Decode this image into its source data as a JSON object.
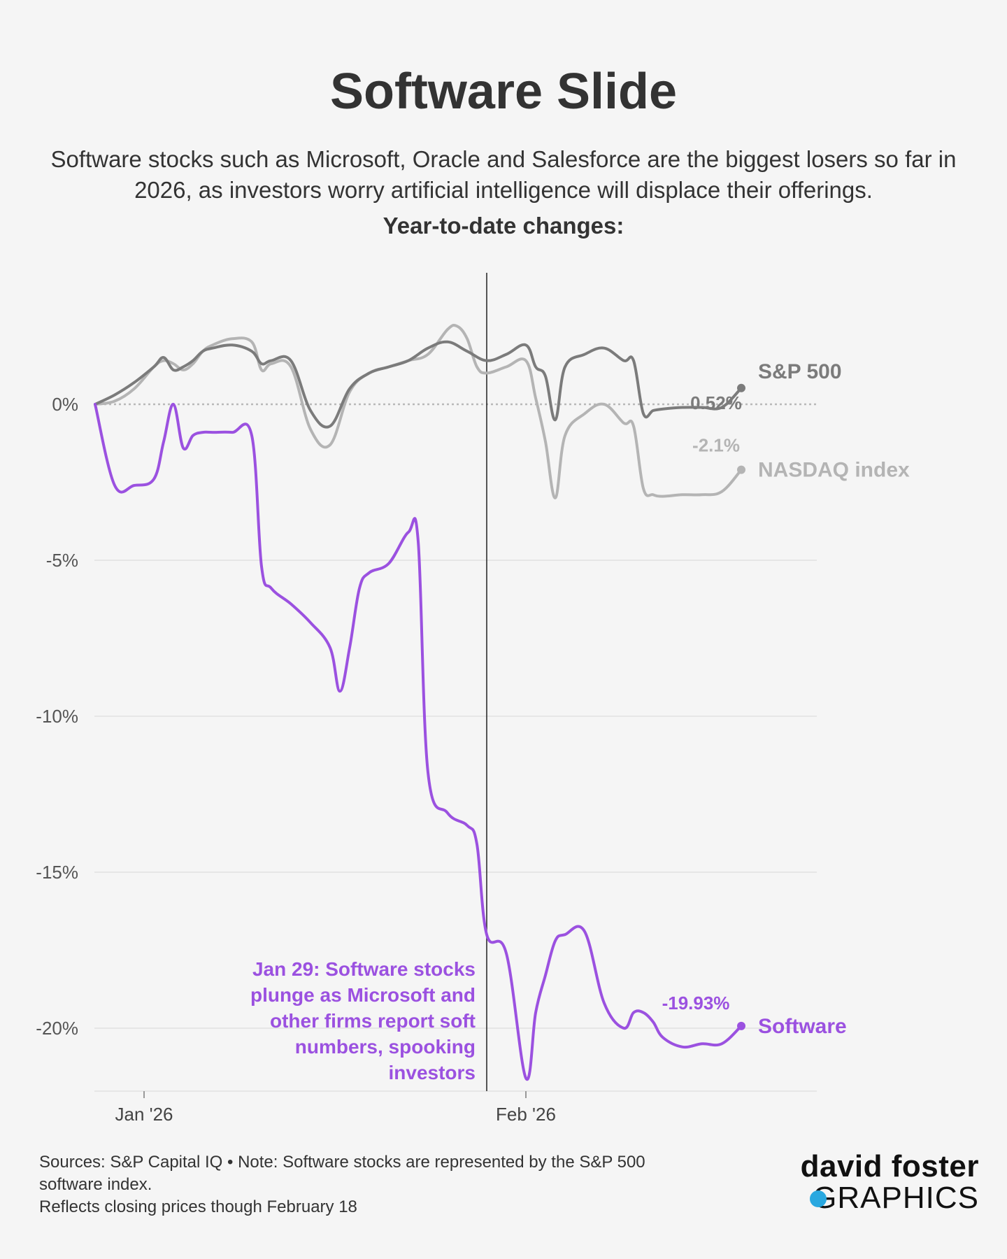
{
  "header": {
    "title": "Software Slide",
    "subtitle": "Software stocks such as Microsoft, Oracle and Salesforce are the biggest losers so far in 2026, as investors worry artificial intelligence will displace their offerings.",
    "ytd_label": "Year-to-date changes:"
  },
  "footer": {
    "line1": "Sources: S&P Capital IQ • Note: Software stocks are represented by the S&P 500 software index.",
    "line2": "Reflects closing prices though February 18"
  },
  "logo": {
    "top": "david foster",
    "bottom": "GRAPHICS"
  },
  "colors": {
    "software": "#9b51e0",
    "sp500": "#7b7b7b",
    "nasdaq": "#b4b4b4",
    "grid": "#e6e6e6",
    "text": "#333333"
  },
  "chart_data": {
    "type": "line",
    "x_unit": "trading day (0 = Dec 31, 2025)",
    "x_range": [
      0,
      34
    ],
    "y_range": [
      -22,
      4
    ],
    "y_ticks": [
      0,
      -5,
      -10,
      -15,
      -20
    ],
    "y_tick_labels": [
      "0%",
      "-5%",
      "-10%",
      "-15%",
      "-20%"
    ],
    "x_ticks": [
      {
        "x": 2.5,
        "label": "Jan '26"
      },
      {
        "x": 22,
        "label": "Feb '26"
      }
    ],
    "event_line_x": 20,
    "series": [
      {
        "name": "S&P 500",
        "key": "sp500",
        "end_label": "0.52%",
        "x": [
          0,
          1,
          2,
          3,
          3.5,
          4,
          4.5,
          5,
          5.5,
          6,
          7,
          8,
          8.5,
          9,
          10,
          11,
          12,
          13,
          14,
          15,
          16,
          17,
          18,
          19,
          20,
          21,
          22,
          22.5,
          23,
          23.5,
          24,
          25,
          26,
          27,
          27.5,
          28,
          28.5,
          29,
          30,
          31,
          32,
          33
        ],
        "y": [
          0,
          0.3,
          0.7,
          1.2,
          1.5,
          1.1,
          1.2,
          1.4,
          1.7,
          1.8,
          1.9,
          1.7,
          1.3,
          1.4,
          1.4,
          -0.2,
          -0.7,
          0.5,
          1.0,
          1.2,
          1.4,
          1.8,
          2.0,
          1.7,
          1.4,
          1.6,
          1.9,
          1.2,
          0.9,
          -0.5,
          1.2,
          1.6,
          1.8,
          1.4,
          1.4,
          -0.3,
          -0.2,
          -0.15,
          -0.1,
          -0.1,
          -0.1,
          0.52
        ]
      },
      {
        "name": "NASDAQ index",
        "key": "nasdaq",
        "end_label": "-2.1%",
        "x": [
          0,
          1,
          2,
          3,
          3.5,
          4,
          4.5,
          5,
          5.5,
          6,
          7,
          8,
          8.5,
          9,
          10,
          11,
          12,
          13,
          14,
          15,
          16,
          17,
          18,
          18.5,
          19,
          19.5,
          20,
          21,
          22,
          22.5,
          23,
          23.5,
          24,
          25,
          26,
          27,
          27.5,
          28,
          28.5,
          29,
          30,
          31,
          32,
          33
        ],
        "y": [
          0,
          0.1,
          0.5,
          1.2,
          1.4,
          1.3,
          1.1,
          1.3,
          1.7,
          1.9,
          2.1,
          2.0,
          1.1,
          1.3,
          1.2,
          -0.8,
          -1.3,
          0.4,
          1.0,
          1.2,
          1.4,
          1.6,
          2.4,
          2.5,
          2.1,
          1.2,
          1.0,
          1.2,
          1.4,
          0.2,
          -1.2,
          -3.0,
          -1.0,
          -0.3,
          0.0,
          -0.6,
          -0.7,
          -2.7,
          -2.9,
          -2.95,
          -2.9,
          -2.9,
          -2.8,
          -2.1
        ]
      },
      {
        "name": "Software",
        "key": "software",
        "end_label": "-19.93%",
        "x": [
          0,
          1,
          2,
          3,
          3.5,
          4,
          4.5,
          5,
          5.5,
          6,
          7,
          8,
          8.5,
          9,
          10,
          11,
          12,
          12.5,
          13,
          13.5,
          14,
          15,
          16,
          16.5,
          17,
          18,
          19,
          19.5,
          20,
          21,
          22,
          22.5,
          23,
          23.5,
          24,
          25,
          26,
          27,
          27.5,
          28,
          28.5,
          29,
          30,
          31,
          32,
          33
        ],
        "y": [
          0,
          -2.6,
          -2.6,
          -2.4,
          -1.2,
          0.0,
          -1.4,
          -1.0,
          -0.9,
          -0.9,
          -0.9,
          -1.0,
          -5.2,
          -5.9,
          -6.4,
          -7.0,
          -7.8,
          -9.2,
          -7.8,
          -5.9,
          -5.4,
          -5.1,
          -4.1,
          -4.4,
          -11.8,
          -13.1,
          -13.5,
          -14.1,
          -17.0,
          -17.6,
          -21.6,
          -19.5,
          -18.3,
          -17.2,
          -17.0,
          -16.9,
          -19.2,
          -20.0,
          -19.5,
          -19.5,
          -19.8,
          -20.3,
          -20.6,
          -20.5,
          -20.5,
          -19.93
        ]
      }
    ],
    "annotation": {
      "lines": [
        "Jan 29: Software stocks",
        "plunge as Microsoft and",
        "other firms report soft",
        "numbers, spooking",
        "investors"
      ]
    }
  }
}
